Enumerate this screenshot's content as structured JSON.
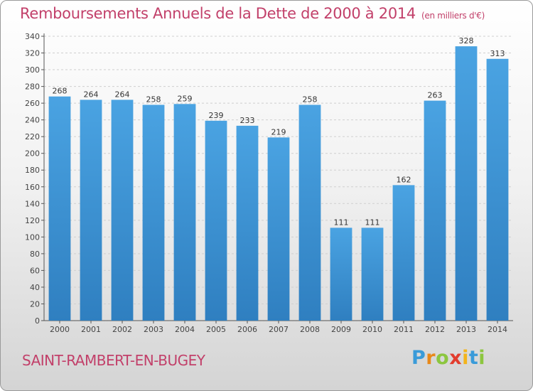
{
  "title": "Remboursements Annuels de la Dette de 2000 à 2014",
  "unit_note": "(en milliers d'€)",
  "commune": "SAINT-RAMBERT-EN-BUGEY",
  "logo": {
    "letters": [
      "P",
      "r",
      "o",
      "x",
      "i",
      "t",
      "i"
    ],
    "colors": [
      "#3a9bd9",
      "#e8891a",
      "#8cc63f",
      "#e23d2e",
      "#f3b41b",
      "#3a9bd9",
      "#8cc63f"
    ]
  },
  "colors": {
    "bar": "#4aa3e2",
    "bar_dark": "#2f7fc0",
    "title": "#c2406a"
  },
  "chart_data": {
    "type": "bar",
    "title": "Remboursements Annuels de la Dette de 2000 à 2014",
    "xlabel": "",
    "ylabel": "",
    "categories": [
      "2000",
      "2001",
      "2002",
      "2003",
      "2004",
      "2005",
      "2006",
      "2007",
      "2008",
      "2009",
      "2010",
      "2011",
      "2012",
      "2013",
      "2014"
    ],
    "values": [
      268,
      264,
      264,
      258,
      259,
      239,
      233,
      219,
      258,
      111,
      111,
      162,
      263,
      328,
      313
    ],
    "ylim": [
      0,
      340
    ],
    "yticks": [
      0,
      20,
      40,
      60,
      80,
      100,
      120,
      140,
      160,
      180,
      200,
      220,
      240,
      260,
      280,
      300,
      320,
      340
    ],
    "grid": true
  }
}
